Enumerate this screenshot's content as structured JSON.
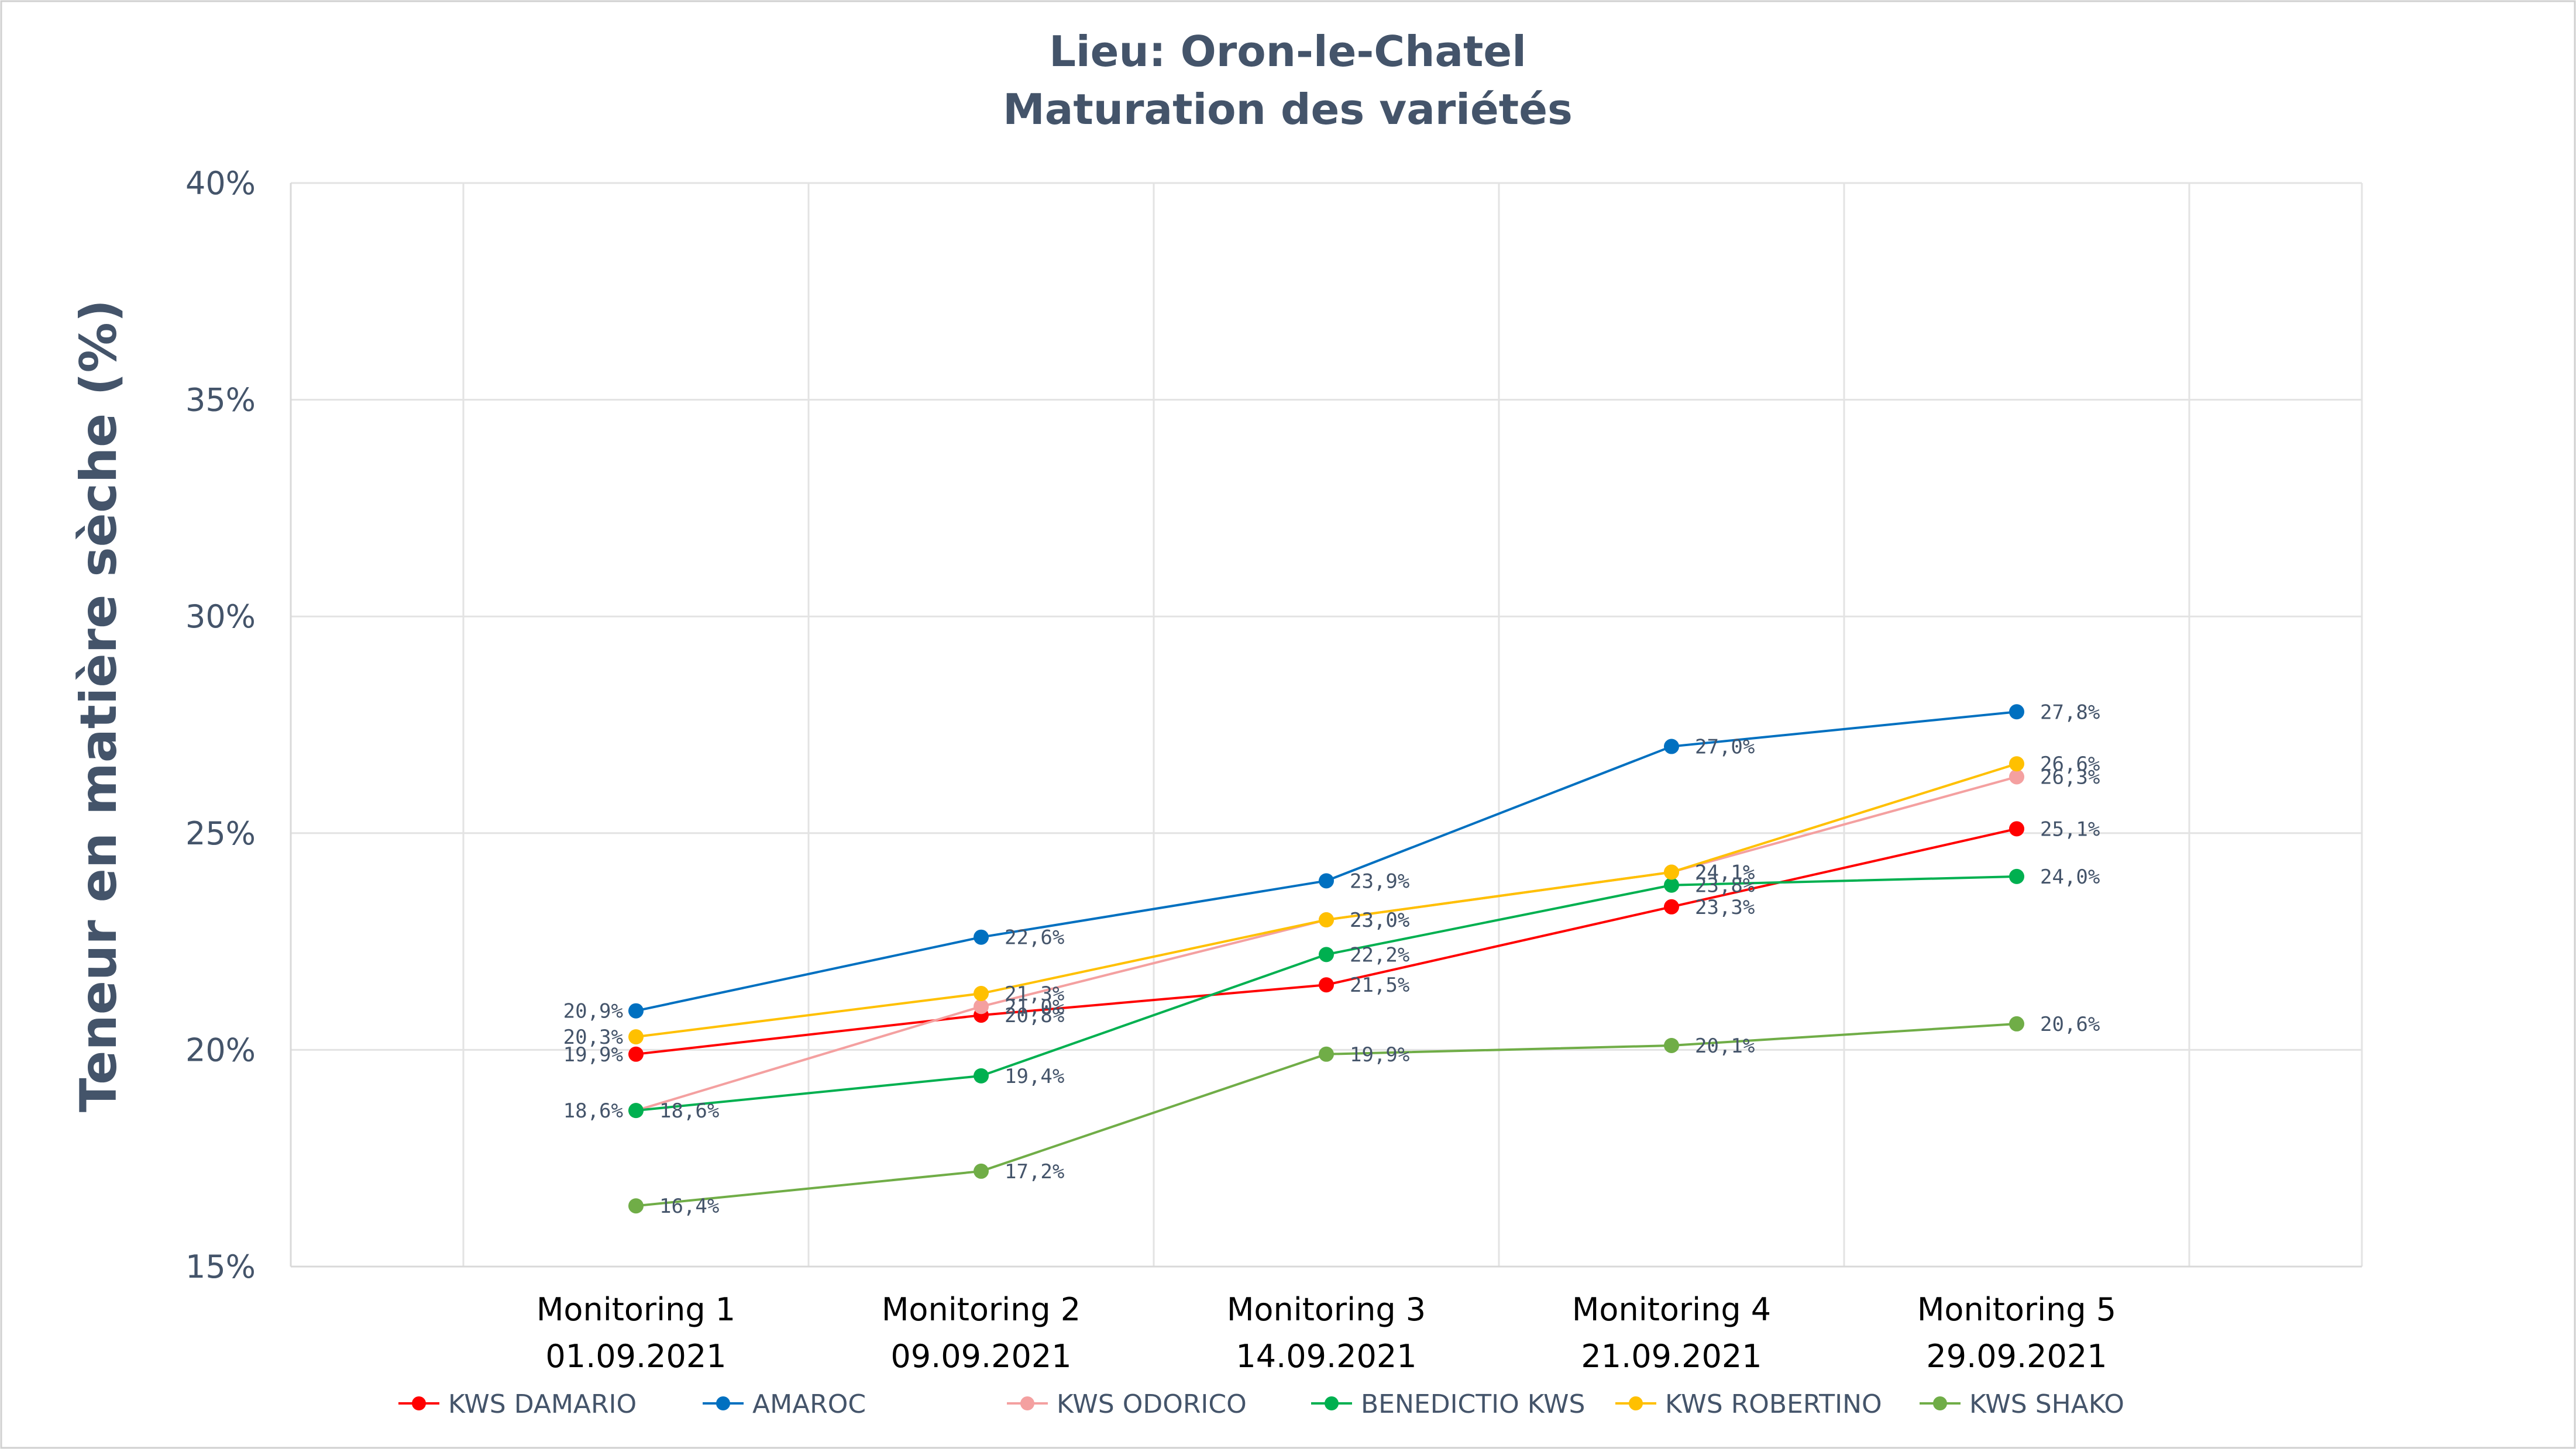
{
  "chart_data": {
    "type": "line",
    "title": "Lieu: Oron-le-Chatel",
    "subtitle": "Maturation des variétés",
    "xlabel": "",
    "ylabel": "Teneur en matière sèche (%)",
    "ylim": [
      15,
      40
    ],
    "yticks": [
      "15%",
      "20%",
      "25%",
      "30%",
      "35%",
      "40%"
    ],
    "ytick_values": [
      15,
      20,
      25,
      30,
      35,
      40
    ],
    "grid": true,
    "legend_position": "bottom",
    "categories": [
      "Monitoring 1 01.09.2021",
      "Monitoring 2 09.09.2021",
      "Monitoring 3 14.09.2021",
      "Monitoring 4 21.09.2021",
      "Monitoring 5 29.09.2021"
    ],
    "category_lines": [
      [
        "Monitoring 1",
        "01.09.2021"
      ],
      [
        "Monitoring 2",
        "09.09.2021"
      ],
      [
        "Monitoring 3",
        "14.09.2021"
      ],
      [
        "Monitoring 4",
        "21.09.2021"
      ],
      [
        "Monitoring 5",
        "29.09.2021"
      ]
    ],
    "series": [
      {
        "name": "KWS DAMARIO",
        "color": "#ff0000",
        "values": [
          19.9,
          20.8,
          21.5,
          23.3,
          25.1
        ],
        "labels": [
          "19,9%",
          "20,8%",
          "21,5%",
          "23,3%",
          "25,1%"
        ],
        "label_sides": [
          "left",
          "right",
          "right",
          "right",
          "right"
        ]
      },
      {
        "name": "AMAROC",
        "color": "#0070c0",
        "values": [
          20.9,
          22.6,
          23.9,
          27.0,
          27.8
        ],
        "labels": [
          "20,9%",
          "22,6%",
          "23,9%",
          "27,0%",
          "27,8%"
        ],
        "label_sides": [
          "left",
          "right",
          "right",
          "right",
          "right"
        ]
      },
      {
        "name": "KWS ODORICO",
        "color": "#f4a0a0",
        "values": [
          18.6,
          21.0,
          23.0,
          24.1,
          26.3
        ],
        "labels": [
          "18,6%",
          "21,0%",
          "23,0%",
          "24,1%",
          "26,3%"
        ],
        "label_sides": [
          "left",
          "right",
          "right",
          "right",
          "right"
        ]
      },
      {
        "name": "BENEDICTIO KWS",
        "color": "#00b050",
        "values": [
          18.6,
          19.4,
          22.2,
          23.8,
          24.0
        ],
        "labels": [
          "18,6%",
          "19,4%",
          "22,2%",
          "23,8%",
          "24,0%"
        ],
        "label_sides": [
          "right",
          "right",
          "right",
          "right",
          "right"
        ]
      },
      {
        "name": "KWS ROBERTINO",
        "color": "#ffc000",
        "values": [
          20.3,
          21.3,
          23.0,
          24.1,
          26.6
        ],
        "labels": [
          "20,3%",
          "21,3%",
          "23,0%",
          "24,1%",
          "26,6%"
        ],
        "label_sides": [
          "left",
          "right",
          "right",
          "right",
          "right"
        ]
      },
      {
        "name": "KWS SHAKO",
        "color": "#70ad47",
        "values": [
          16.4,
          17.2,
          19.9,
          20.1,
          20.6
        ],
        "labels": [
          "16,4%",
          "17,2%",
          "19,9%",
          "20,1%",
          "20,6%"
        ],
        "label_sides": [
          "right",
          "right",
          "right",
          "right",
          "right"
        ]
      }
    ]
  }
}
